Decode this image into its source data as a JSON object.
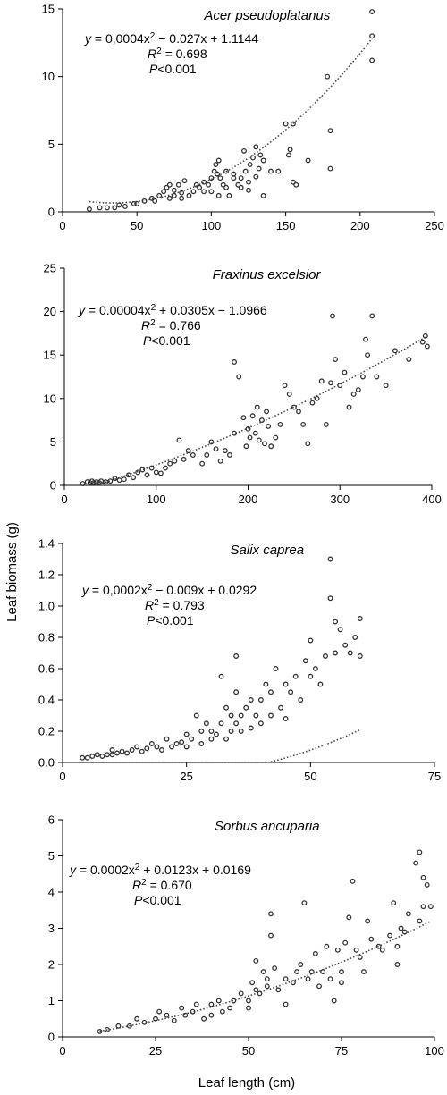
{
  "ylabel": "Leaf biomass (g)",
  "xlabel": "Leaf length (cm)",
  "chart_data": [
    {
      "type": "scatter",
      "title": "Acer pseudoplatanus",
      "xlim": [
        0,
        250
      ],
      "ylim": [
        0,
        15
      ],
      "xticks": [
        0,
        50,
        100,
        150,
        200,
        250
      ],
      "xtick_labels": [
        "0",
        "50",
        "100",
        "150",
        "200",
        "250"
      ],
      "yticks": [
        0,
        5,
        10,
        15
      ],
      "ytick_labels": [
        "0",
        "5",
        "10",
        "15"
      ],
      "annotation": {
        "eq_italic": "y",
        "eq_text": " = 0,0004x",
        "eq_sup": "2",
        "eq_rest": " − 0.027x + 1.1144",
        "r2_italic": "R",
        "r2_sup": "2",
        "r2_text": " = 0.698",
        "p_italic": "P",
        "p_text": "<0.001"
      },
      "trend": {
        "a": 0.0004,
        "b": -0.027,
        "c": 1.1144,
        "x_range": [
          18,
          208
        ]
      },
      "series": [
        {
          "x": [
            18,
            25,
            30,
            35,
            38,
            42,
            48,
            50,
            55,
            60,
            62,
            65,
            68,
            70,
            72,
            72,
            75,
            75,
            78,
            80,
            80,
            82,
            85,
            88,
            90,
            92,
            95,
            95,
            98,
            100,
            100,
            102,
            103,
            104,
            105,
            105,
            106,
            108,
            110,
            110,
            112,
            115,
            115,
            118,
            120,
            120,
            122,
            123,
            125,
            125,
            126,
            128,
            130,
            130,
            132,
            133,
            135,
            135,
            140,
            145,
            150,
            152,
            153,
            155,
            155,
            157,
            165,
            178,
            180,
            180,
            208,
            208,
            208
          ],
          "y": [
            0.2,
            0.3,
            0.3,
            0.3,
            0.5,
            0.4,
            0.6,
            0.6,
            0.8,
            1.0,
            0.8,
            1.2,
            1.5,
            1.8,
            1.0,
            2.0,
            1.2,
            1.6,
            2.0,
            1.0,
            1.4,
            2.3,
            1.2,
            1.5,
            2.0,
            1.8,
            1.5,
            2.2,
            2.0,
            1.5,
            2.5,
            3.0,
            3.5,
            2.8,
            3.8,
            1.2,
            2.5,
            2.0,
            1.8,
            3.0,
            1.2,
            2.5,
            2.8,
            2.0,
            2.5,
            1.8,
            4.5,
            3.0,
            2.2,
            1.6,
            3.5,
            4.0,
            4.8,
            2.6,
            3.2,
            4.2,
            3.8,
            1.2,
            3.0,
            3.0,
            6.5,
            4.2,
            4.6,
            6.5,
            2.2,
            2.0,
            3.8,
            10.0,
            6.0,
            3.2,
            11.2,
            13.0,
            14.8
          ]
        }
      ]
    },
    {
      "type": "scatter",
      "title": "Fraxinus excelsior",
      "xlim": [
        0,
        400
      ],
      "ylim": [
        0,
        25
      ],
      "xticks": [
        0,
        100,
        200,
        300,
        400
      ],
      "xtick_labels": [
        "0",
        "100",
        "200",
        "300",
        "400"
      ],
      "yticks": [
        0,
        5,
        10,
        15,
        20,
        25
      ],
      "ytick_labels": [
        "0",
        "5",
        "10",
        "15",
        "20",
        "25"
      ],
      "annotation": {
        "eq_italic": "y",
        "eq_text": " = 0.00004x",
        "eq_sup": "2",
        "eq_rest": " + 0.0305x − 1.0966",
        "r2_italic": "R",
        "r2_sup": "2",
        "r2_text": " = 0.766",
        "p_italic": "P",
        "p_text": "<0.001"
      },
      "trend": {
        "a": 4e-05,
        "b": 0.0305,
        "c": -1.0966,
        "x_range": [
          20,
          395
        ]
      },
      "series": [
        {
          "x": [
            20,
            25,
            28,
            30,
            32,
            35,
            38,
            40,
            45,
            50,
            55,
            60,
            65,
            70,
            75,
            80,
            85,
            90,
            95,
            100,
            105,
            110,
            115,
            120,
            125,
            130,
            135,
            140,
            150,
            155,
            160,
            165,
            170,
            175,
            180,
            185,
            185,
            190,
            195,
            198,
            200,
            202,
            205,
            208,
            210,
            212,
            215,
            218,
            220,
            222,
            225,
            230,
            235,
            240,
            245,
            250,
            255,
            260,
            265,
            270,
            275,
            280,
            285,
            290,
            292,
            295,
            300,
            305,
            310,
            315,
            320,
            325,
            328,
            330,
            335,
            340,
            350,
            360,
            375,
            390,
            393,
            395
          ],
          "y": [
            0.2,
            0.4,
            0.3,
            0.5,
            0.3,
            0.4,
            0.3,
            0.5,
            0.4,
            0.5,
            0.8,
            0.6,
            0.7,
            1.2,
            0.9,
            1.5,
            1.8,
            1.2,
            2.0,
            1.5,
            1.4,
            2.0,
            2.5,
            2.8,
            5.2,
            3.0,
            4.0,
            3.5,
            2.5,
            3.5,
            5.0,
            4.2,
            2.8,
            4.0,
            3.5,
            14.2,
            6.0,
            12.5,
            7.8,
            4.5,
            6.5,
            5.5,
            8.0,
            6.0,
            9.0,
            5.2,
            7.5,
            4.8,
            8.5,
            6.8,
            4.5,
            5.5,
            7.0,
            11.5,
            10.5,
            9.0,
            8.5,
            7.0,
            4.8,
            9.5,
            10.0,
            12.0,
            7.0,
            11.8,
            19.5,
            14.5,
            11.5,
            13.0,
            9.0,
            10.5,
            11.0,
            12.5,
            16.8,
            15.0,
            19.5,
            12.5,
            11.5,
            15.5,
            14.5,
            16.5,
            17.2,
            16.0
          ]
        }
      ]
    },
    {
      "type": "scatter",
      "title": "Salix caprea",
      "xlim": [
        0,
        75
      ],
      "ylim": [
        0,
        1.4
      ],
      "xticks": [
        0,
        25,
        50,
        75
      ],
      "xtick_labels": [
        "0",
        "25",
        "50",
        "75"
      ],
      "yticks": [
        0,
        0.2,
        0.4,
        0.6,
        0.8,
        1.0,
        1.2,
        1.4
      ],
      "ytick_labels": [
        "0.0",
        "0.2",
        "0.4",
        "0.6",
        "0.8",
        "1.0",
        "1.2",
        "1.4"
      ],
      "annotation": {
        "eq_italic": "y",
        "eq_text": " = 0,0002x",
        "eq_sup": "2",
        "eq_rest": " − 0.009x + 0.0292",
        "r2_italic": "R",
        "r2_sup": "2",
        "r2_text": " = 0.793",
        "p_italic": "P",
        "p_text": "<0.001"
      },
      "trend": {
        "a": 0.0002,
        "b": -0.009,
        "c": 0.0292,
        "x_range": [
          4,
          60
        ]
      },
      "series": [
        {
          "x": [
            4,
            5,
            6,
            7,
            8,
            9,
            10,
            10,
            11,
            12,
            13,
            14,
            15,
            16,
            17,
            18,
            19,
            20,
            21,
            22,
            23,
            24,
            25,
            25,
            26,
            27,
            28,
            28,
            29,
            30,
            30,
            31,
            32,
            32,
            33,
            33,
            34,
            34,
            35,
            35,
            35,
            36,
            36,
            37,
            38,
            38,
            39,
            40,
            40,
            41,
            42,
            42,
            43,
            44,
            45,
            45,
            46,
            47,
            48,
            49,
            50,
            50,
            51,
            52,
            53,
            54,
            54,
            55,
            55,
            56,
            57,
            58,
            59,
            60,
            60
          ],
          "y": [
            0.03,
            0.03,
            0.04,
            0.05,
            0.04,
            0.05,
            0.08,
            0.05,
            0.06,
            0.07,
            0.06,
            0.08,
            0.1,
            0.07,
            0.09,
            0.12,
            0.1,
            0.08,
            0.15,
            0.1,
            0.12,
            0.13,
            0.18,
            0.1,
            0.15,
            0.3,
            0.2,
            0.12,
            0.25,
            0.2,
            0.15,
            0.18,
            0.55,
            0.25,
            0.35,
            0.15,
            0.3,
            0.2,
            0.68,
            0.45,
            0.25,
            0.3,
            0.2,
            0.35,
            0.4,
            0.22,
            0.3,
            0.4,
            0.25,
            0.5,
            0.45,
            0.3,
            0.6,
            0.35,
            0.5,
            0.28,
            0.45,
            0.55,
            0.4,
            0.65,
            0.78,
            0.55,
            0.6,
            0.5,
            0.68,
            1.3,
            1.05,
            0.9,
            0.7,
            0.85,
            0.75,
            0.7,
            0.8,
            0.92,
            0.68
          ]
        }
      ]
    },
    {
      "type": "scatter",
      "title": "Sorbus ancuparia",
      "xlim": [
        0,
        100
      ],
      "ylim": [
        0,
        6
      ],
      "xticks": [
        0,
        25,
        50,
        75,
        100
      ],
      "xtick_labels": [
        "0",
        "25",
        "50",
        "75",
        "100"
      ],
      "yticks": [
        0,
        1,
        2,
        3,
        4,
        5,
        6
      ],
      "ytick_labels": [
        "0",
        "1",
        "2",
        "3",
        "4",
        "5",
        "6"
      ],
      "annotation": {
        "eq_italic": "y",
        "eq_text": " = 0.0002x",
        "eq_sup": "2",
        "eq_rest": " + 0.0123x + 0.0169",
        "r2_italic": "R",
        "r2_sup": "2",
        "r2_text": " = 0.670",
        "p_italic": "P",
        "p_text": "<0.001"
      },
      "trend": {
        "a": 0.0002,
        "b": 0.0123,
        "c": 0.0169,
        "x_range": [
          10,
          99
        ]
      },
      "series": [
        {
          "x": [
            10,
            12,
            15,
            18,
            20,
            22,
            25,
            26,
            28,
            30,
            32,
            33,
            35,
            36,
            38,
            40,
            40,
            42,
            43,
            45,
            46,
            48,
            50,
            50,
            51,
            52,
            52,
            53,
            54,
            55,
            55,
            56,
            56,
            57,
            58,
            60,
            60,
            62,
            63,
            64,
            65,
            66,
            67,
            68,
            69,
            70,
            71,
            72,
            73,
            74,
            75,
            75,
            76,
            77,
            78,
            79,
            80,
            81,
            82,
            83,
            85,
            86,
            88,
            89,
            90,
            90,
            91,
            92,
            93,
            95,
            96,
            96,
            97,
            97,
            98,
            99
          ],
          "y": [
            0.15,
            0.2,
            0.3,
            0.3,
            0.5,
            0.4,
            0.5,
            0.7,
            0.6,
            0.45,
            0.8,
            0.6,
            0.7,
            0.9,
            0.5,
            0.6,
            0.9,
            1.0,
            0.7,
            0.8,
            1.0,
            1.2,
            1.0,
            0.8,
            1.5,
            1.3,
            2.1,
            1.2,
            1.8,
            1.4,
            1.6,
            3.4,
            2.8,
            1.9,
            1.3,
            0.9,
            1.6,
            1.5,
            1.8,
            2.0,
            3.7,
            1.6,
            1.8,
            2.3,
            1.4,
            1.8,
            2.5,
            1.6,
            1.0,
            2.4,
            1.5,
            1.8,
            2.6,
            3.3,
            4.3,
            2.4,
            2.2,
            1.8,
            3.2,
            2.7,
            2.5,
            2.4,
            2.8,
            3.7,
            2.5,
            2.0,
            3.0,
            2.9,
            3.4,
            4.8,
            5.1,
            3.2,
            4.4,
            3.6,
            4.2,
            3.6
          ]
        }
      ]
    }
  ]
}
